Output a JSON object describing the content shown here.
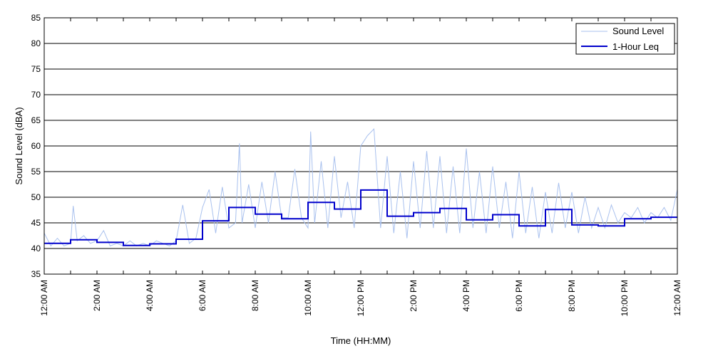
{
  "chart_data": {
    "type": "line",
    "title": "",
    "xlabel": "Time (HH:MM)",
    "ylabel": "Sound Level (dBA)",
    "ylim": [
      35,
      85
    ],
    "yticks": [
      35,
      40,
      45,
      50,
      55,
      60,
      65,
      70,
      75,
      80,
      85
    ],
    "xlim_hours": [
      0,
      24
    ],
    "xtick_labels": [
      "12:00 AM",
      "2:00 AM",
      "4:00 AM",
      "6:00 AM",
      "8:00 AM",
      "10:00 AM",
      "12:00 PM",
      "2:00 PM",
      "4:00 PM",
      "6:00 PM",
      "8:00 PM",
      "10:00 PM",
      "12:00 AM"
    ],
    "grid": "horizontal",
    "legend": "top-right",
    "series": [
      {
        "name": "Sound Level",
        "style": "thin-line",
        "color": "#a9c1ee",
        "x_hours": [
          0,
          0.25,
          0.5,
          0.75,
          1,
          1.1,
          1.25,
          1.5,
          1.75,
          2,
          2.25,
          2.5,
          2.75,
          3,
          3.25,
          3.5,
          3.75,
          4,
          4.25,
          4.5,
          4.75,
          5,
          5.25,
          5.5,
          5.75,
          6,
          6.25,
          6.5,
          6.75,
          7,
          7.25,
          7.4,
          7.5,
          7.75,
          8,
          8.25,
          8.5,
          8.75,
          9,
          9.25,
          9.5,
          9.75,
          10,
          10.1,
          10.25,
          10.5,
          10.75,
          11,
          11.25,
          11.5,
          11.75,
          12,
          12.25,
          12.5,
          12.75,
          13,
          13.25,
          13.5,
          13.75,
          14,
          14.25,
          14.5,
          14.75,
          15,
          15.25,
          15.5,
          15.75,
          16,
          16.25,
          16.5,
          16.75,
          17,
          17.25,
          17.5,
          17.75,
          18,
          18.25,
          18.5,
          18.75,
          19,
          19.25,
          19.5,
          19.75,
          20,
          20.25,
          20.5,
          20.75,
          21,
          21.25,
          21.5,
          21.75,
          22,
          22.25,
          22.5,
          22.75,
          23,
          23.25,
          23.5,
          23.75,
          24
        ],
        "values": [
          43,
          40.5,
          42,
          40.5,
          41,
          48.3,
          41.5,
          42.5,
          41,
          41.5,
          43.5,
          40.5,
          41,
          40.5,
          41.5,
          40.5,
          41,
          40.5,
          41.5,
          41,
          40.5,
          41.5,
          48.5,
          41,
          42,
          48,
          51.5,
          43,
          52,
          44,
          45,
          60.5,
          45,
          52.5,
          44,
          53,
          45,
          55,
          46,
          46,
          55.5,
          46,
          44,
          62.8,
          45,
          57,
          44,
          58,
          46,
          53,
          44,
          60,
          62,
          63.3,
          44,
          58,
          43,
          55,
          42,
          57,
          44,
          59,
          44,
          58,
          43,
          56,
          43,
          59.5,
          44,
          55,
          43,
          56,
          44,
          53,
          42,
          55,
          43,
          52,
          42,
          51,
          43,
          52.8,
          44,
          51,
          43,
          50,
          44,
          48,
          44,
          48.5,
          45,
          47,
          46,
          48,
          45,
          47,
          46,
          48,
          45.5,
          51.5
        ]
      },
      {
        "name": "1-Hour Leq",
        "style": "step",
        "color": "#0000cc",
        "hour_starts": [
          0,
          1,
          2,
          3,
          4,
          5,
          6,
          7,
          8,
          9,
          10,
          11,
          12,
          13,
          14,
          15,
          16,
          17,
          18,
          19,
          20,
          21,
          22,
          23
        ],
        "values": [
          41,
          41.7,
          41.2,
          40.6,
          40.9,
          41.8,
          45.4,
          48,
          46.7,
          45.8,
          49,
          47.7,
          51.4,
          46.3,
          47,
          47.8,
          45.6,
          46.6,
          44.4,
          47.6,
          44.6,
          44.4,
          45.8,
          46.1
        ]
      }
    ]
  }
}
